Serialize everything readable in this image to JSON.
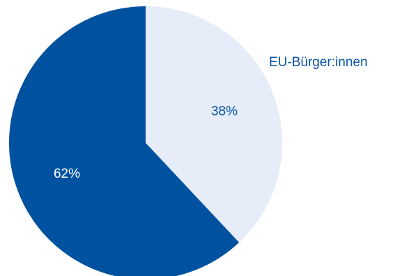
{
  "chart_data": {
    "type": "pie",
    "slices": [
      {
        "name": "EU-Bürger:innen",
        "value": 38,
        "label": "38%",
        "color": "#e6ecf8",
        "label_color": "#0a55a6"
      },
      {
        "name": "",
        "value": 62,
        "label": "62%",
        "color": "#0052a0",
        "label_color": "#ffffff"
      }
    ],
    "legend": {
      "placement": "top-right",
      "entries": [
        "EU-Bürger:innen"
      ],
      "color": "#0a55a6"
    },
    "start_angle": "12 o'clock",
    "direction": "clockwise"
  }
}
